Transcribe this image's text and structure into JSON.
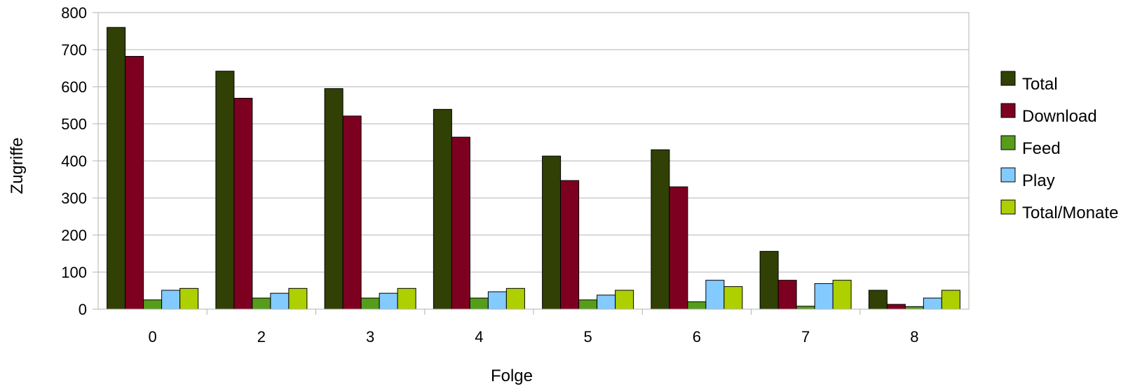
{
  "chart_data": {
    "type": "bar",
    "title": "",
    "xlabel": "Folge",
    "ylabel": "Zugriffe",
    "categories": [
      "0",
      "2",
      "3",
      "4",
      "5",
      "6",
      "7",
      "8"
    ],
    "ylim": [
      0,
      800
    ],
    "yticks": [
      "0",
      "100",
      "200",
      "300",
      "400",
      "500",
      "600",
      "700",
      "800"
    ],
    "grid": true,
    "legend_position": "right",
    "series": [
      {
        "name": "Total",
        "color": "#314004",
        "values": [
          760,
          642,
          595,
          539,
          413,
          430,
          156,
          51
        ]
      },
      {
        "name": "Download",
        "color": "#7e0021",
        "values": [
          682,
          569,
          521,
          464,
          347,
          330,
          78,
          13
        ]
      },
      {
        "name": "Feed",
        "color": "#579d1c",
        "values": [
          25,
          30,
          30,
          30,
          25,
          20,
          8,
          7
        ]
      },
      {
        "name": "Play",
        "color": "#83caff",
        "values": [
          51,
          43,
          43,
          47,
          38,
          78,
          69,
          30
        ]
      },
      {
        "name": "Total/Monate",
        "color": "#aecf00",
        "values": [
          56,
          56,
          56,
          56,
          51,
          61,
          78,
          51
        ]
      }
    ]
  }
}
